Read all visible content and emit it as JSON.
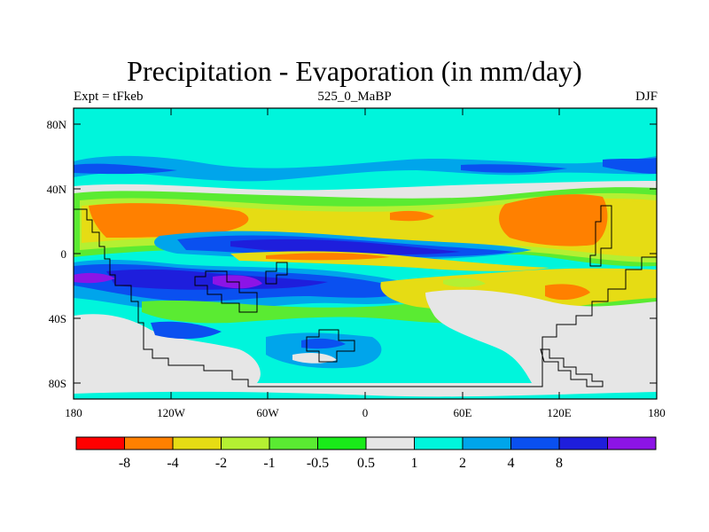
{
  "title": "Precipitation - Evaporation (in mm/day)",
  "subtitle_left": "Expt = tFkeb",
  "subtitle_center": "525_0_MaBP",
  "subtitle_right": "DJF",
  "axes": {
    "y_ticks": [
      "80N",
      "40N",
      "0",
      "40S",
      "80S"
    ],
    "x_ticks": [
      "180",
      "120W",
      "60W",
      "0",
      "60E",
      "120E",
      "180"
    ]
  },
  "colorbar": {
    "colors": [
      "#ff0000",
      "#ff8000",
      "#e6dc14",
      "#b4f032",
      "#5aeb32",
      "#19eb19",
      "#e6e6e6",
      "#00f5dc",
      "#00a5eb",
      "#0a50f0",
      "#1e1edc",
      "#8c14e6"
    ],
    "labels": [
      "-8",
      "-4",
      "-2",
      "-1",
      "-0.5",
      "0.5",
      "1",
      "2",
      "4",
      "8"
    ]
  },
  "colors": {
    "land_gray": "#e6e6e6",
    "cyan": "#00f5dc",
    "light_blue": "#00a5eb",
    "blue": "#0a50f0",
    "dark_blue": "#1e1edc",
    "purple": "#8c14e6",
    "green": "#19eb19",
    "light_green": "#b4f032",
    "yellow": "#e6dc14",
    "orange": "#ff8000"
  }
}
